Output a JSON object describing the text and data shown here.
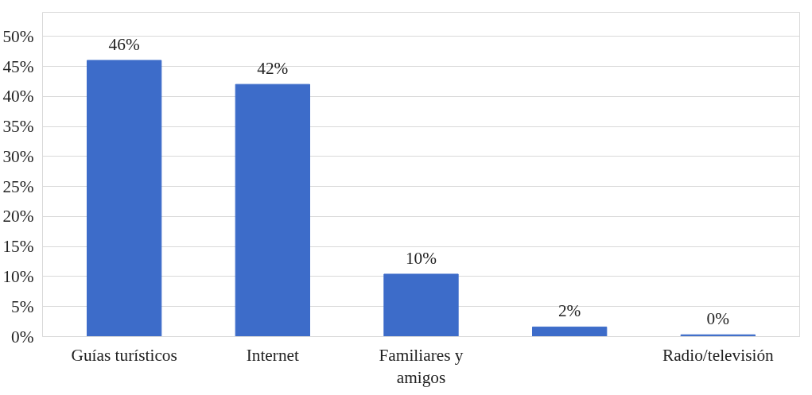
{
  "chart_data": {
    "type": "bar",
    "categories": [
      "Guías turísticos",
      "Internet",
      "Familiares y amigos",
      null,
      "Radio/televisión"
    ],
    "values": [
      46,
      42,
      10.4,
      1.6,
      0.3
    ],
    "value_labels": [
      "46%",
      "42%",
      "10%",
      "2%",
      "0%"
    ],
    "color": "#3d6cc9",
    "ylim": [
      0,
      54
    ],
    "yticks": [
      {
        "value": 0,
        "label": "0%"
      },
      {
        "value": 5,
        "label": "5%"
      },
      {
        "value": 10,
        "label": "10%"
      },
      {
        "value": 15,
        "label": "15%"
      },
      {
        "value": 20,
        "label": "20%"
      },
      {
        "value": 25,
        "label": "25%"
      },
      {
        "value": 30,
        "label": "30%"
      },
      {
        "value": 35,
        "label": "35%"
      },
      {
        "value": 40,
        "label": "40%"
      },
      {
        "value": 45,
        "label": "45%"
      },
      {
        "value": 50,
        "label": "50%"
      }
    ],
    "grid": "y"
  }
}
